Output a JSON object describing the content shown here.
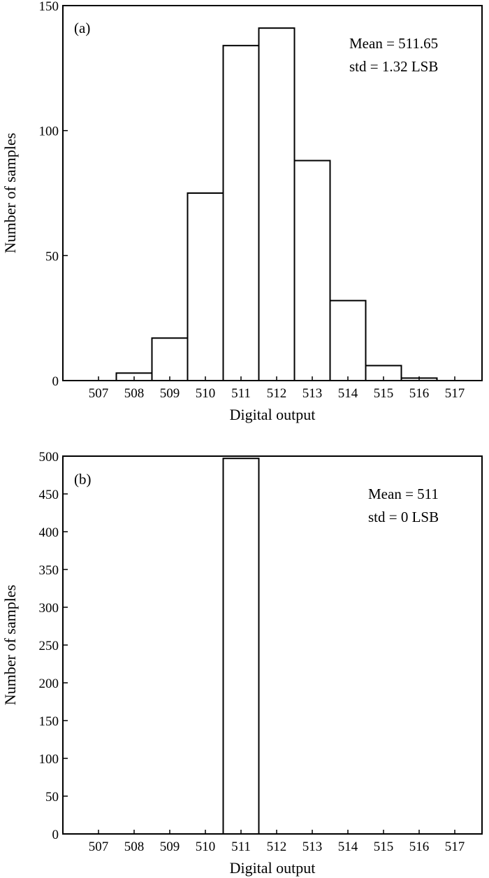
{
  "chart_data": [
    {
      "type": "bar",
      "panel_label": "(a)",
      "categories": [
        "507",
        "508",
        "509",
        "510",
        "511",
        "512",
        "513",
        "514",
        "515",
        "516",
        "517"
      ],
      "values": [
        0,
        3,
        17,
        75,
        134,
        141,
        88,
        32,
        6,
        1,
        0
      ],
      "xlabel": "Digital output",
      "ylabel": "Number of samples",
      "ylim": [
        0,
        150
      ],
      "yticks": [
        0,
        50,
        100,
        150
      ],
      "annotation": [
        "Mean = 511.65",
        "std = 1.32 LSB"
      ],
      "grid": false
    },
    {
      "type": "bar",
      "panel_label": "(b)",
      "categories": [
        "507",
        "508",
        "509",
        "510",
        "511",
        "512",
        "513",
        "514",
        "515",
        "516",
        "517"
      ],
      "values": [
        0,
        0,
        0,
        0,
        497,
        0,
        0,
        0,
        0,
        0,
        0
      ],
      "xlabel": "Digital output",
      "ylabel": "Number of samples",
      "ylim": [
        0,
        500
      ],
      "yticks": [
        0,
        50,
        100,
        150,
        200,
        250,
        300,
        350,
        400,
        450,
        500
      ],
      "annotation": [
        "Mean = 511",
        "std = 0 LSB"
      ],
      "grid": false
    }
  ]
}
